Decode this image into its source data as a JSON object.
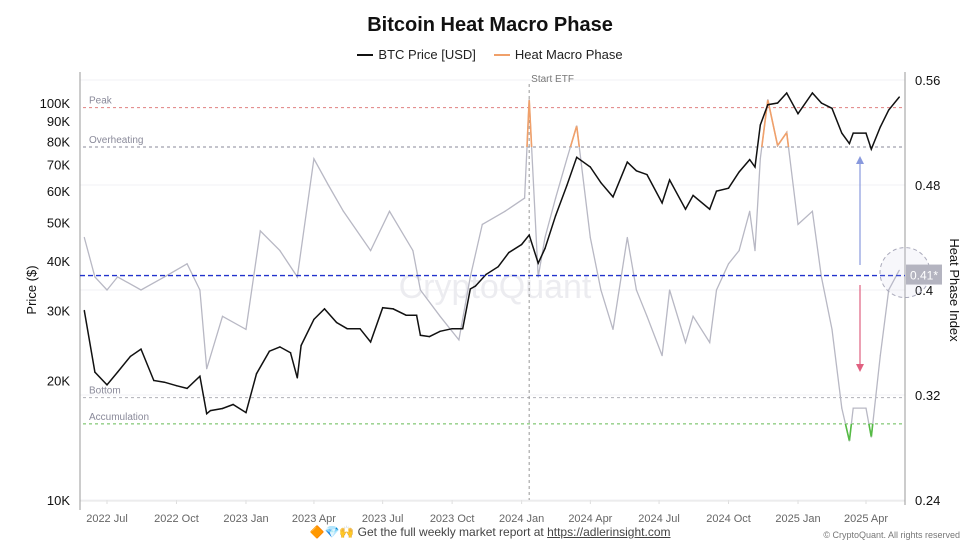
{
  "chart_data": {
    "type": "line",
    "title": "Bitcoin Heat Macro Phase",
    "legend": [
      {
        "name": "BTC Price [USD]",
        "color": "#111111"
      },
      {
        "name": "Heat Macro Phase",
        "color": "#f0a06a"
      }
    ],
    "legend_placement": "top-center",
    "ylabel_left": "Price ($)",
    "ylabel_right": "Heat Phase Index",
    "y_left_scale": "log",
    "y_left_range": [
      10000,
      114000
    ],
    "y_left_ticks": [
      "100K",
      "90K",
      "80K",
      "70K",
      "60K",
      "50K",
      "40K",
      "30K",
      "20K",
      "10K"
    ],
    "y_left_tick_values": [
      100000,
      90000,
      80000,
      70000,
      60000,
      50000,
      40000,
      30000,
      20000,
      10000
    ],
    "y_right_range": [
      0.24,
      0.56
    ],
    "y_right_ticks": [
      "0.56",
      "0.48",
      "0.4",
      "0.32",
      "0.24"
    ],
    "y_right_tick_values": [
      0.56,
      0.48,
      0.4,
      0.32,
      0.24
    ],
    "x_ticks": [
      "2022 Jul",
      "2022 Oct",
      "2023 Jan",
      "2023 Apr",
      "2023 Jul",
      "2023 Oct",
      "2024 Jan",
      "2024 Apr",
      "2024 Jul",
      "2024 Oct",
      "2025 Jan",
      "2025 Apr"
    ],
    "x_tick_dates": [
      "2022-07-01",
      "2022-10-01",
      "2023-01-01",
      "2023-04-01",
      "2023-07-01",
      "2023-10-01",
      "2024-01-01",
      "2024-04-01",
      "2024-07-01",
      "2024-10-01",
      "2025-01-01",
      "2025-04-01"
    ],
    "x_range": [
      "2022-06-01",
      "2025-05-18"
    ],
    "grid": true,
    "thresholds": [
      {
        "label": "Peak",
        "value": 0.539,
        "color": "#e08080"
      },
      {
        "label": "Overheating",
        "value": 0.509,
        "color": "#8a8a9a"
      },
      {
        "label": "Bottom",
        "value": 0.318,
        "color": "#b0b0b8"
      },
      {
        "label": "Accumulation",
        "value": 0.298,
        "color": "#66bb55"
      }
    ],
    "current_level": {
      "value": 0.411,
      "label": "0.41*",
      "color": "#2233cc"
    },
    "event": {
      "label": "Start ETF",
      "date": "2024-01-11"
    },
    "overheat_color": "#f0a06a",
    "accumulation_color": "#55bb44",
    "heat_line_color": "#b8b8c4",
    "series": [
      {
        "name": "BTC Price [USD]",
        "axis": "left",
        "dates": [
          "2022-06-01",
          "2022-06-15",
          "2022-07-01",
          "2022-07-15",
          "2022-08-01",
          "2022-08-15",
          "2022-09-01",
          "2022-09-15",
          "2022-10-01",
          "2022-10-15",
          "2022-11-01",
          "2022-11-10",
          "2022-11-15",
          "2022-12-01",
          "2022-12-15",
          "2023-01-01",
          "2023-01-15",
          "2023-02-01",
          "2023-02-15",
          "2023-03-01",
          "2023-03-10",
          "2023-03-15",
          "2023-04-01",
          "2023-04-15",
          "2023-05-01",
          "2023-05-15",
          "2023-06-01",
          "2023-06-15",
          "2023-07-01",
          "2023-07-15",
          "2023-08-01",
          "2023-08-15",
          "2023-08-20",
          "2023-09-01",
          "2023-09-15",
          "2023-10-01",
          "2023-10-15",
          "2023-10-25",
          "2023-11-01",
          "2023-11-15",
          "2023-12-01",
          "2023-12-15",
          "2024-01-01",
          "2024-01-11",
          "2024-01-23",
          "2024-02-01",
          "2024-02-15",
          "2024-03-01",
          "2024-03-14",
          "2024-04-01",
          "2024-04-15",
          "2024-05-01",
          "2024-05-20",
          "2024-06-01",
          "2024-06-15",
          "2024-07-05",
          "2024-07-15",
          "2024-08-05",
          "2024-08-15",
          "2024-09-06",
          "2024-09-15",
          "2024-10-01",
          "2024-10-15",
          "2024-10-29",
          "2024-11-05",
          "2024-11-12",
          "2024-11-22",
          "2024-12-05",
          "2024-12-17",
          "2025-01-01",
          "2025-01-20",
          "2025-02-01",
          "2025-02-15",
          "2025-02-28",
          "2025-03-10",
          "2025-03-15",
          "2025-04-01",
          "2025-04-08",
          "2025-04-20",
          "2025-05-01",
          "2025-05-15"
        ],
        "values": [
          30000,
          21000,
          19500,
          21000,
          23000,
          24000,
          20000,
          19800,
          19400,
          19100,
          20500,
          16500,
          16800,
          17000,
          17400,
          16600,
          20800,
          23700,
          24300,
          23500,
          20300,
          24500,
          28500,
          30300,
          28000,
          27000,
          27000,
          25000,
          30500,
          30300,
          29200,
          29200,
          26000,
          25800,
          26600,
          27000,
          27000,
          34000,
          34600,
          37000,
          38700,
          42000,
          44000,
          46500,
          39500,
          43000,
          52000,
          62000,
          73000,
          69000,
          63000,
          58000,
          71000,
          67500,
          66000,
          56000,
          64000,
          54000,
          58500,
          54000,
          60000,
          61000,
          67000,
          72000,
          69000,
          88000,
          99000,
          100000,
          106000,
          94000,
          106000,
          100000,
          97000,
          84000,
          79000,
          84000,
          84000,
          76500,
          87000,
          96000,
          103500
        ]
      },
      {
        "name": "Heat Macro Phase",
        "axis": "right",
        "dates": [
          "2022-06-01",
          "2022-06-15",
          "2022-07-01",
          "2022-07-15",
          "2022-08-15",
          "2022-09-15",
          "2022-10-15",
          "2022-11-01",
          "2022-11-10",
          "2022-12-01",
          "2023-01-01",
          "2023-01-20",
          "2023-02-15",
          "2023-03-10",
          "2023-04-01",
          "2023-04-20",
          "2023-05-10",
          "2023-06-15",
          "2023-07-10",
          "2023-08-10",
          "2023-08-20",
          "2023-09-15",
          "2023-10-10",
          "2023-10-25",
          "2023-11-10",
          "2023-12-10",
          "2024-01-05",
          "2024-01-11",
          "2024-01-23",
          "2024-02-01",
          "2024-02-15",
          "2024-03-01",
          "2024-03-14",
          "2024-04-01",
          "2024-04-15",
          "2024-05-01",
          "2024-05-20",
          "2024-06-01",
          "2024-06-15",
          "2024-07-05",
          "2024-07-15",
          "2024-08-05",
          "2024-08-15",
          "2024-09-06",
          "2024-09-15",
          "2024-10-01",
          "2024-10-15",
          "2024-10-29",
          "2024-11-05",
          "2024-11-12",
          "2024-11-22",
          "2024-12-05",
          "2024-12-17",
          "2025-01-01",
          "2025-01-20",
          "2025-02-01",
          "2025-02-15",
          "2025-02-28",
          "2025-03-10",
          "2025-03-15",
          "2025-04-01",
          "2025-04-08",
          "2025-04-20",
          "2025-05-01",
          "2025-05-15"
        ],
        "values": [
          0.44,
          0.41,
          0.4,
          0.41,
          0.4,
          0.41,
          0.42,
          0.4,
          0.34,
          0.38,
          0.37,
          0.445,
          0.43,
          0.41,
          0.5,
          0.48,
          0.46,
          0.43,
          0.46,
          0.43,
          0.4,
          0.38,
          0.362,
          0.41,
          0.45,
          0.46,
          0.47,
          0.545,
          0.41,
          0.44,
          0.47,
          0.5,
          0.525,
          0.44,
          0.4,
          0.37,
          0.44,
          0.4,
          0.38,
          0.35,
          0.4,
          0.36,
          0.38,
          0.36,
          0.4,
          0.42,
          0.43,
          0.46,
          0.43,
          0.5,
          0.545,
          0.51,
          0.52,
          0.45,
          0.46,
          0.41,
          0.37,
          0.31,
          0.285,
          0.31,
          0.31,
          0.288,
          0.35,
          0.4,
          0.415
        ]
      }
    ],
    "watermark": "CryptoQuant"
  },
  "footer": {
    "emojis": "🔶💎🙌",
    "text": "Get the full weekly market report at ",
    "link": "https://adlerinsight.com"
  },
  "copyright": "© CryptoQuant. All rights reserved"
}
